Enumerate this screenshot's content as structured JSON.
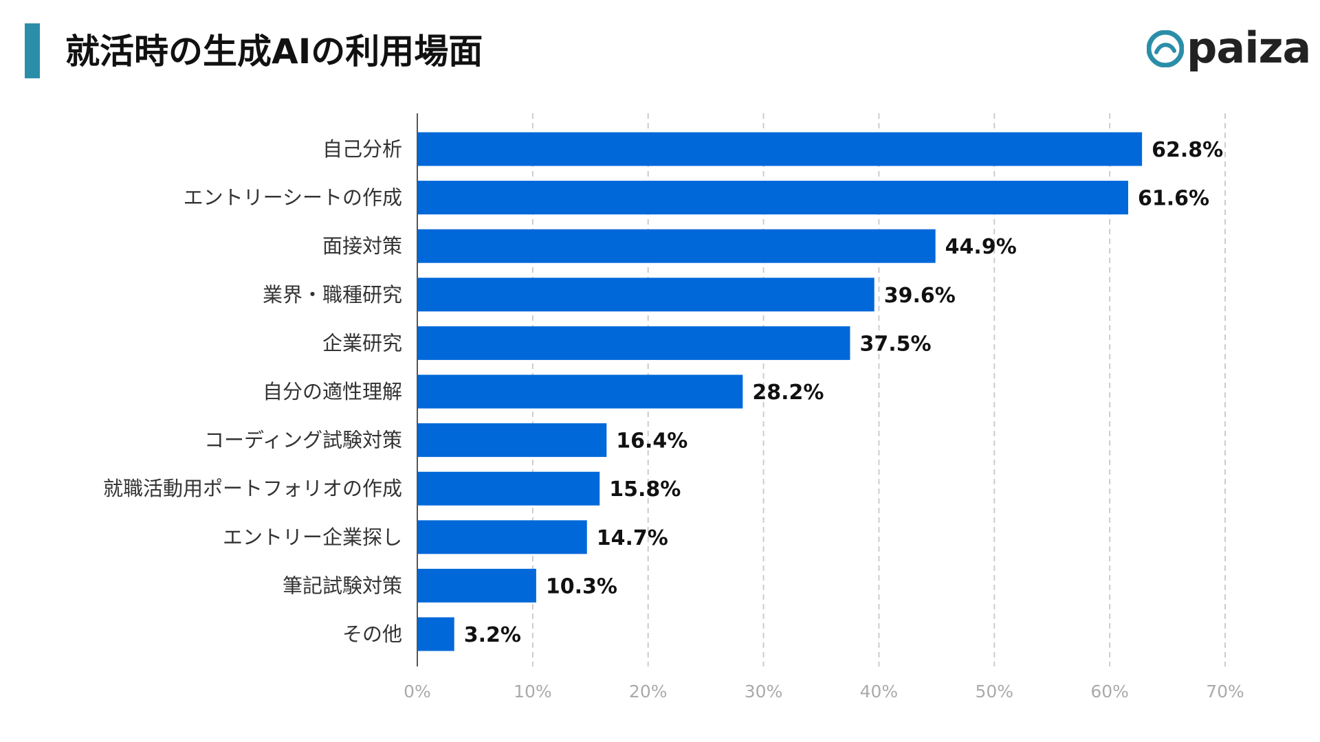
{
  "header": {
    "title": "就活時の生成AIの利用場面",
    "logo_text": "paiza",
    "accent_color": "#2b8ea8"
  },
  "colors": {
    "bar": "#0068d9",
    "grid": "#cccccc",
    "tick_label": "#aaaaaa",
    "category_label": "#333333",
    "value_label": "#111111",
    "logo_mark": "#2b8ea8",
    "logo_text": "#222222"
  },
  "chart_data": {
    "type": "bar",
    "orientation": "horizontal",
    "title": "就活時の生成AIの利用場面",
    "categories": [
      "自己分析",
      "エントリーシートの作成",
      "面接対策",
      "業界・職種研究",
      "企業研究",
      "自分の適性理解",
      "コーディング試験対策",
      "就職活動用ポートフォリオの作成",
      "エントリー企業探し",
      "筆記試験対策",
      "その他"
    ],
    "values": [
      62.8,
      61.6,
      44.9,
      39.6,
      37.5,
      28.2,
      16.4,
      15.8,
      14.7,
      10.3,
      3.2
    ],
    "value_labels": [
      "62.8%",
      "61.6%",
      "44.9%",
      "39.6%",
      "37.5%",
      "28.2%",
      "16.4%",
      "15.8%",
      "14.7%",
      "10.3%",
      "3.2%"
    ],
    "xlim": [
      0,
      70
    ],
    "x_ticks": [
      0,
      10,
      20,
      30,
      40,
      50,
      60,
      70
    ],
    "x_tick_labels": [
      "0%",
      "10%",
      "20%",
      "30%",
      "40%",
      "50%",
      "60%",
      "70%"
    ],
    "grid": true,
    "xlabel": "",
    "ylabel": ""
  }
}
